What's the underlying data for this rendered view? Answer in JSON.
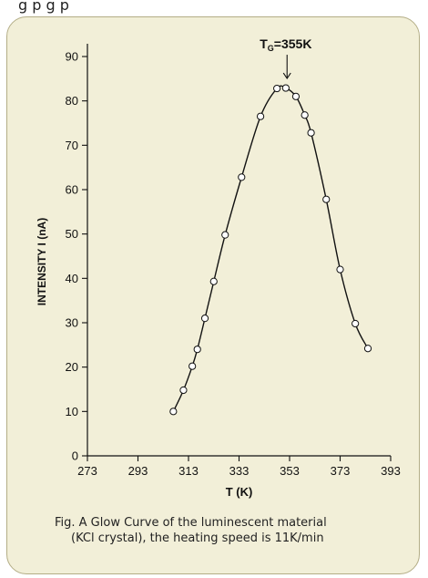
{
  "top_text": "g             p                        g  p",
  "caption": {
    "line1": "Fig. A Glow Curve of the luminescent material",
    "line2": "(KCl crystal), the heating speed is 11K/min"
  },
  "colors": {
    "panel_bg": "#f2efd8",
    "panel_border": "#b3ad86",
    "curve": "#111111",
    "marker_fill": "#ffffff"
  },
  "chart_data": {
    "type": "line",
    "xlabel": "T (K)",
    "ylabel": "INTENSITY I (nA)",
    "xlim": [
      273,
      393
    ],
    "ylim": [
      0,
      90
    ],
    "xticks": [
      273,
      293,
      313,
      333,
      353,
      373,
      393
    ],
    "yticks": [
      0,
      10,
      20,
      30,
      40,
      50,
      60,
      70,
      80,
      90
    ],
    "annotation": {
      "text_main": "T",
      "text_sub": "G",
      "text_rest": "=355K",
      "x": 352,
      "y": 83
    },
    "series": [
      {
        "points": [
          [
            307,
            10
          ],
          [
            311,
            14.8
          ],
          [
            314.5,
            20.2
          ],
          [
            316.5,
            24
          ],
          [
            319.5,
            31
          ],
          [
            323,
            39.3
          ],
          [
            327.5,
            49.8
          ],
          [
            334,
            62.8
          ],
          [
            341.5,
            76.5
          ],
          [
            348,
            82.8
          ],
          [
            351.5,
            82.9
          ],
          [
            355.5,
            81
          ],
          [
            359,
            76.8
          ],
          [
            361.5,
            72.8
          ],
          [
            367.5,
            57.8
          ],
          [
            373,
            42
          ],
          [
            379,
            29.8
          ],
          [
            384,
            24.2
          ]
        ]
      }
    ]
  }
}
